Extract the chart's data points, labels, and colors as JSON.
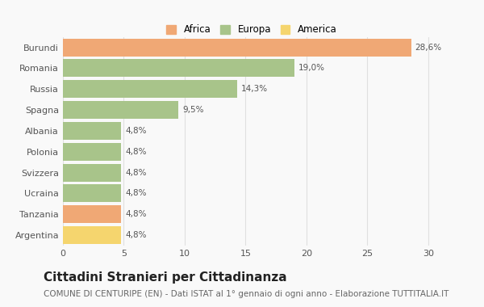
{
  "categories": [
    "Argentina",
    "Tanzania",
    "Ucraina",
    "Svizzera",
    "Polonia",
    "Albania",
    "Spagna",
    "Russia",
    "Romania",
    "Burundi"
  ],
  "values": [
    4.8,
    4.8,
    4.8,
    4.8,
    4.8,
    4.8,
    9.5,
    14.3,
    19.0,
    28.6
  ],
  "bar_colors": [
    "#f5d56e",
    "#f0a875",
    "#a8c48a",
    "#a8c48a",
    "#a8c48a",
    "#a8c48a",
    "#a8c48a",
    "#a8c48a",
    "#a8c48a",
    "#f0a875"
  ],
  "labels": [
    "4,8%",
    "4,8%",
    "4,8%",
    "4,8%",
    "4,8%",
    "4,8%",
    "9,5%",
    "14,3%",
    "19,0%",
    "28,6%"
  ],
  "legend_labels": [
    "Africa",
    "Europa",
    "America"
  ],
  "legend_colors": [
    "#f0a875",
    "#a8c48a",
    "#f5d56e"
  ],
  "title": "Cittadini Stranieri per Cittadinanza",
  "subtitle": "COMUNE DI CENTURIPE (EN) - Dati ISTAT al 1° gennaio di ogni anno - Elaborazione TUTTITALIA.IT",
  "xlim": [
    0,
    31
  ],
  "xticks": [
    0,
    5,
    10,
    15,
    20,
    25,
    30
  ],
  "background_color": "#f9f9f9",
  "grid_color": "#e0e0e0",
  "title_fontsize": 11,
  "subtitle_fontsize": 7.5,
  "label_fontsize": 7.5,
  "tick_fontsize": 8,
  "legend_fontsize": 8.5
}
